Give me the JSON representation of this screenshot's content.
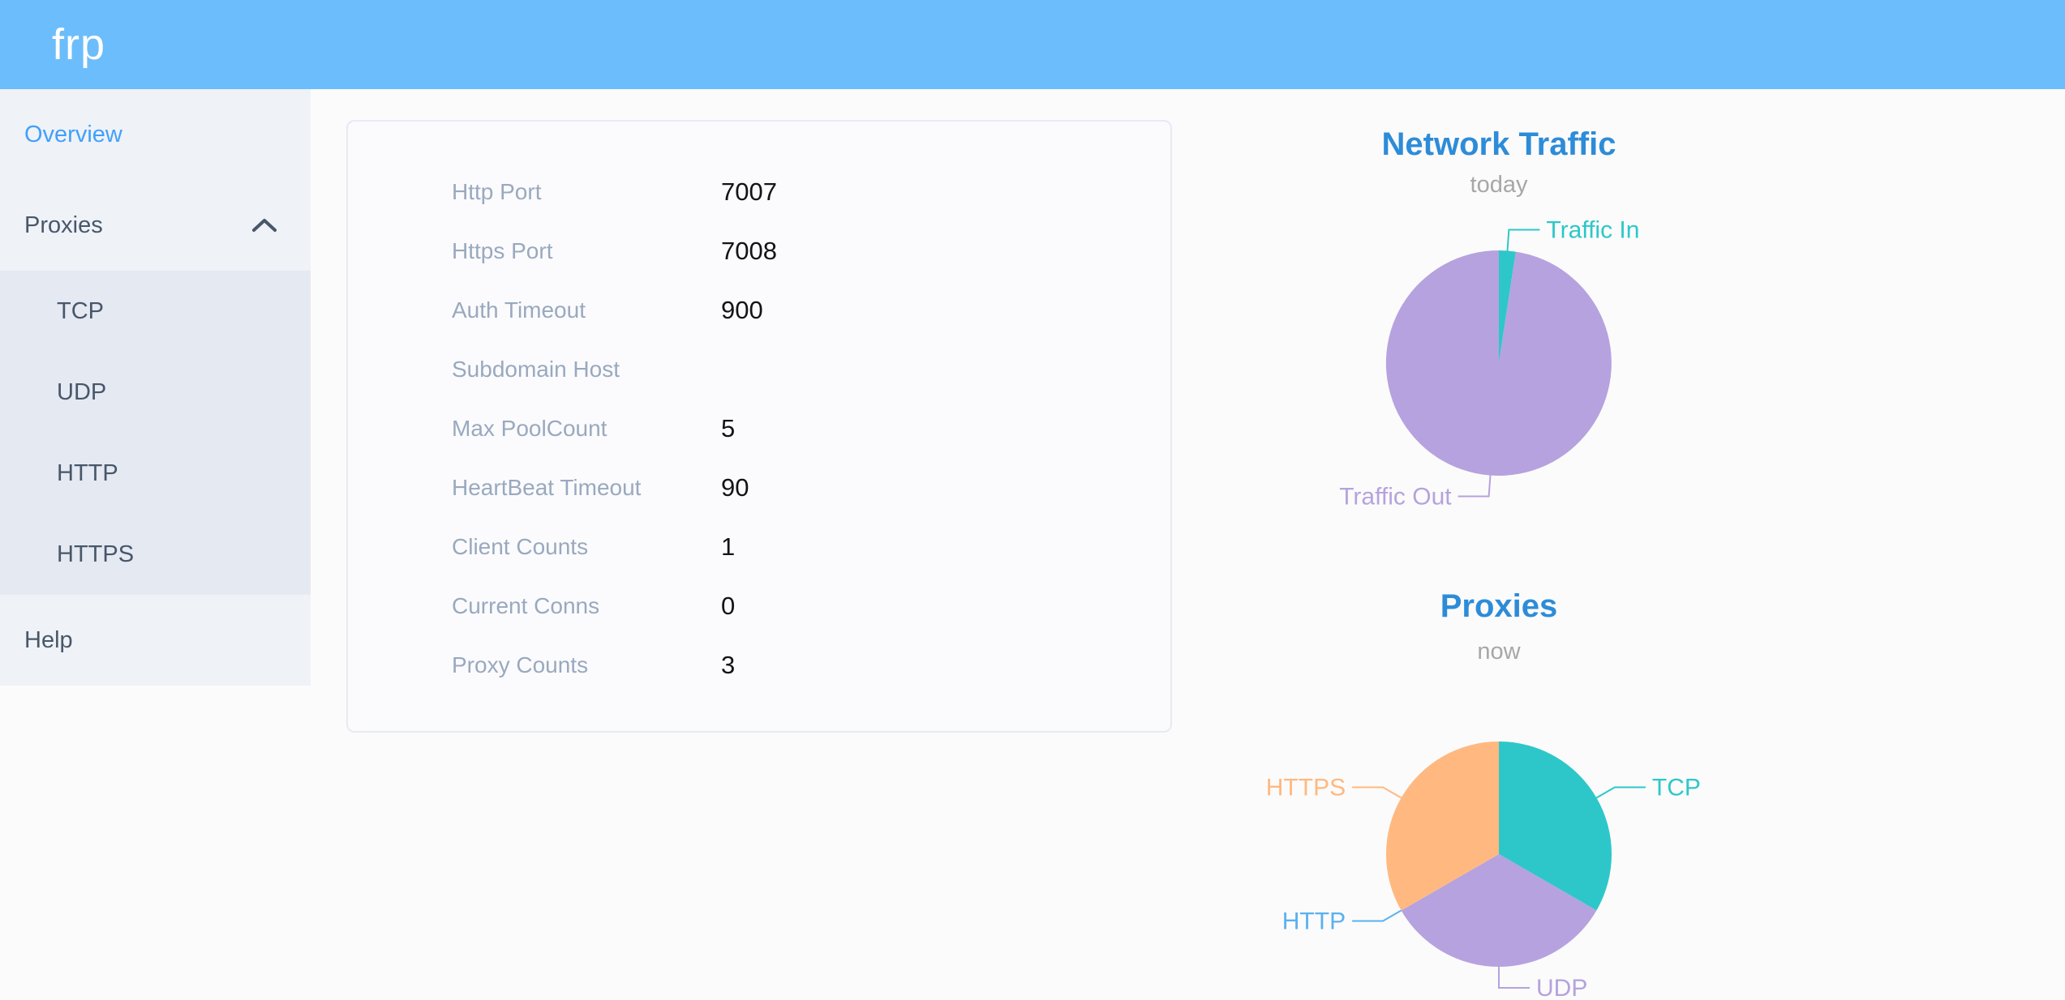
{
  "header": {
    "logo_text": "frp",
    "background_color": "#6cbdfb"
  },
  "sidebar": {
    "background_color": "#eff2f7",
    "submenu_background_color": "#e5e9f2",
    "active_item_color": "#42a0fb",
    "item_color": "#48576a",
    "items": [
      {
        "label": "Overview",
        "active": true
      },
      {
        "label": "Proxies",
        "expanded": true,
        "icon": "chevron-up",
        "children": [
          {
            "label": "TCP"
          },
          {
            "label": "UDP"
          },
          {
            "label": "HTTP"
          },
          {
            "label": "HTTPS"
          }
        ]
      },
      {
        "label": "Help"
      }
    ]
  },
  "server_info": {
    "rows": [
      {
        "label": "Http Port",
        "value": "7007"
      },
      {
        "label": "Https Port",
        "value": "7008"
      },
      {
        "label": "Auth Timeout",
        "value": "900"
      },
      {
        "label": "Subdomain Host",
        "value": ""
      },
      {
        "label": "Max PoolCount",
        "value": "5"
      },
      {
        "label": "HeartBeat Timeout",
        "value": "90"
      },
      {
        "label": "Client Counts",
        "value": "1"
      },
      {
        "label": "Current Conns",
        "value": "0"
      },
      {
        "label": "Proxy Counts",
        "value": "3"
      }
    ]
  },
  "chart_data": [
    {
      "type": "pie",
      "title": "Network Traffic",
      "subtitle": "today",
      "labels": [
        "Traffic In",
        "Traffic Out"
      ],
      "values": [
        2.4,
        97.6
      ],
      "values_note": "estimated percent of arc; no numeric labels shown",
      "colors": [
        "#2ec7c9",
        "#b6a2de"
      ],
      "legend_position": "none",
      "label_position": "outside"
    },
    {
      "type": "pie",
      "title": "Proxies",
      "subtitle": "now",
      "labels": [
        "TCP",
        "UDP",
        "HTTP",
        "HTTPS"
      ],
      "values": [
        1,
        1,
        0,
        1
      ],
      "colors": [
        "#2ec7c9",
        "#b6a2de",
        "#5ab1ef",
        "#ffb980"
      ],
      "legend_position": "none",
      "label_position": "outside"
    }
  ],
  "theme": {
    "chart_title_color": "#2d8cd8",
    "chart_subtitle_color": "#a7a7a7",
    "field_label_color": "#99a9bf",
    "field_value_color": "#141414"
  }
}
